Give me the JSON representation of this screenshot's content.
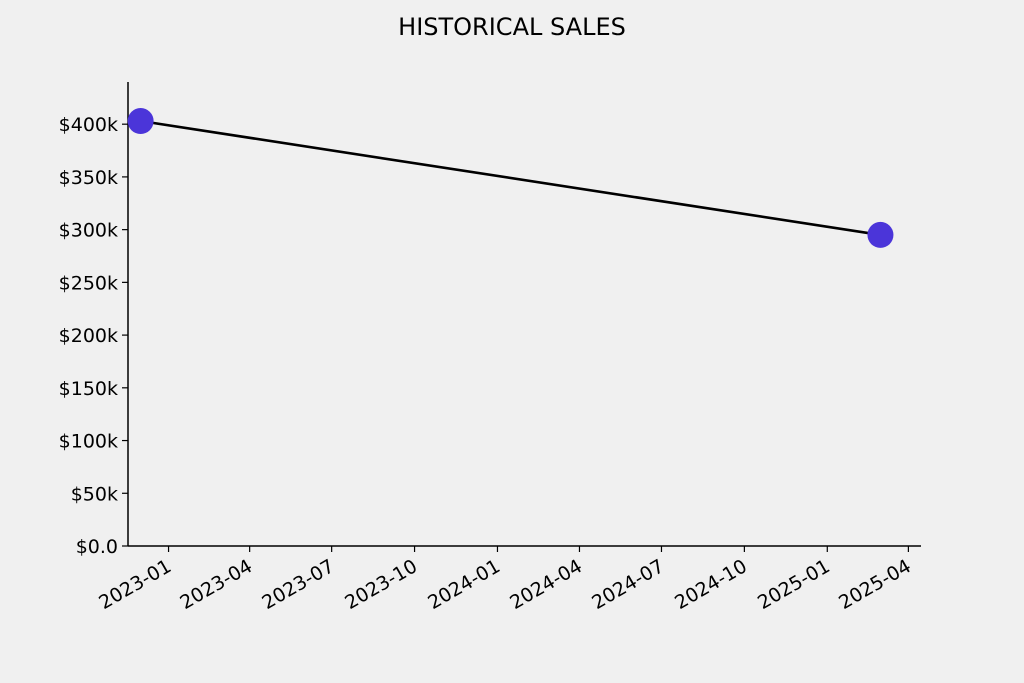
{
  "chart_data": {
    "type": "line",
    "title": "HISTORICAL SALES",
    "xlabel": "",
    "ylabel": "",
    "x_type": "date",
    "x_ticks": [
      "2023-01",
      "2023-04",
      "2023-07",
      "2023-10",
      "2024-01",
      "2024-04",
      "2024-07",
      "2024-10",
      "2025-01",
      "2025-04"
    ],
    "y_ticks": [
      0,
      50000,
      100000,
      150000,
      200000,
      250000,
      300000,
      350000,
      400000
    ],
    "y_tick_labels": [
      "$0.0",
      "$50k",
      "$100k",
      "$150k",
      "$200k",
      "$250k",
      "$300k",
      "$350k",
      "$400k"
    ],
    "xlim": [
      "2022-11-17",
      "2025-04-15"
    ],
    "ylim": [
      0,
      440000
    ],
    "series": [
      {
        "x": [
          "2022-12-01",
          "2025-03-01"
        ],
        "values": [
          403000,
          295000
        ]
      }
    ],
    "grid": false,
    "legend": "none",
    "colors": {
      "line": "#000000",
      "marker": "#4b35d9",
      "background": "#f0f0f0",
      "axis": "#000000"
    }
  }
}
